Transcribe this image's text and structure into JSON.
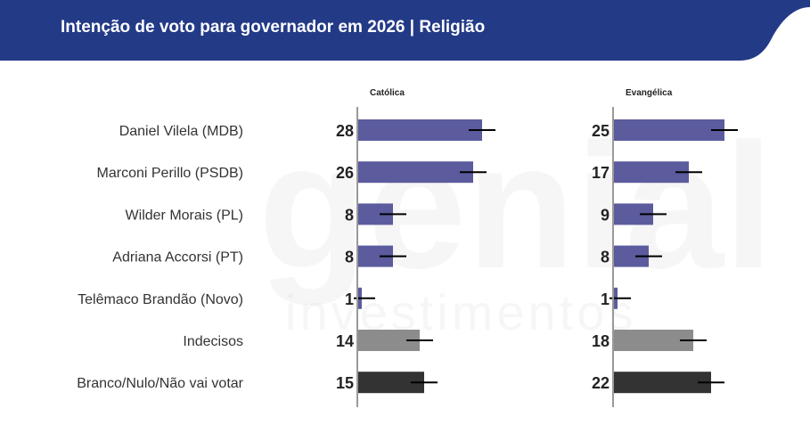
{
  "header": {
    "title": "Intenção de voto para governador em 2026 | Religião",
    "bg_color": "#233a87"
  },
  "watermark": {
    "line1": "genial",
    "line2": "investimentos"
  },
  "chart_data": {
    "type": "bar",
    "orientation": "horizontal",
    "title": "Intenção de voto para governador em 2026 | Religião",
    "categories": [
      "Daniel Vilela (MDB)",
      "Marconi Perillo (PSDB)",
      "Wilder Morais (PL)",
      "Adriana Accorsi (PT)",
      "Telêmaco Brandão (Novo)",
      "Indecisos",
      "Branco/Nulo/Não vai votar"
    ],
    "category_colors": [
      "#5b5b9e",
      "#5b5b9e",
      "#5b5b9e",
      "#5b5b9e",
      "#5b5b9e",
      "#8c8c8c",
      "#333333"
    ],
    "error_margin": 3,
    "xlim": [
      0,
      50
    ],
    "grid": false,
    "series": [
      {
        "name": "Católica",
        "values": [
          28,
          26,
          8,
          8,
          1,
          14,
          15
        ]
      },
      {
        "name": "Evangélica",
        "values": [
          25,
          17,
          9,
          8,
          1,
          18,
          22
        ]
      }
    ]
  }
}
